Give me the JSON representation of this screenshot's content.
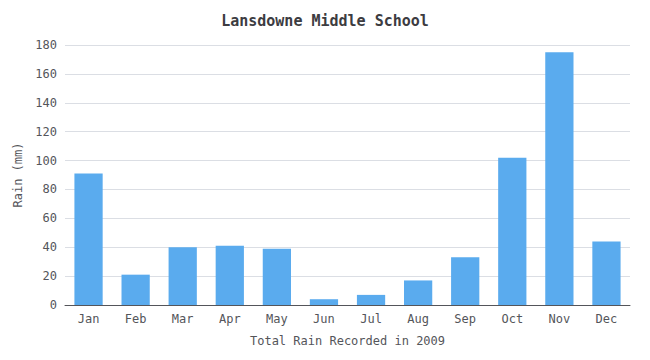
{
  "chart_data": {
    "type": "bar",
    "title": "Lansdowne Middle School",
    "xlabel": "Total Rain Recorded in 2009",
    "ylabel": "Rain (mm)",
    "categories": [
      "Jan",
      "Feb",
      "Mar",
      "Apr",
      "May",
      "Jun",
      "Jul",
      "Aug",
      "Sep",
      "Oct",
      "Nov",
      "Dec"
    ],
    "values": [
      91,
      21,
      40,
      41,
      39,
      4,
      7,
      17,
      33,
      102,
      175,
      44
    ],
    "color": "#5aabee",
    "ylim": [
      0,
      180
    ],
    "yticks": [
      0,
      20,
      40,
      60,
      80,
      100,
      120,
      140,
      160,
      180
    ],
    "grid": true
  }
}
